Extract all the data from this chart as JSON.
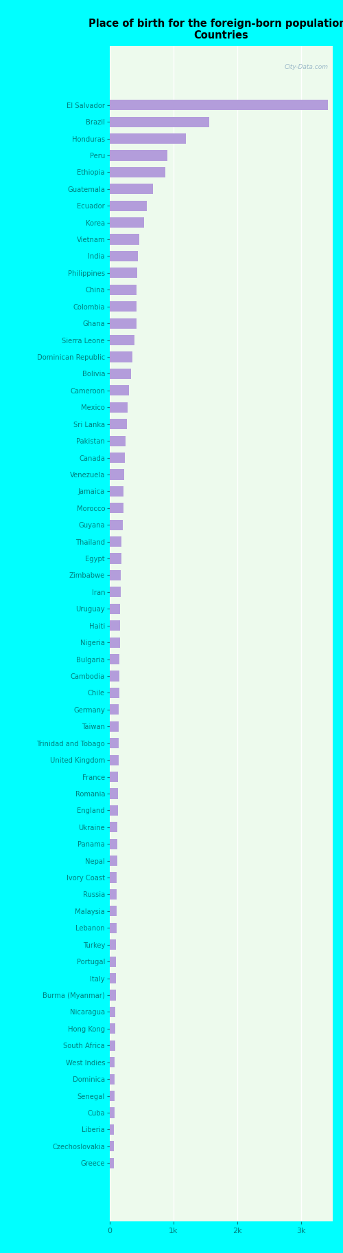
{
  "title": "Place of birth for the foreign-born population -\nCountries",
  "bar_color": "#b39ddb",
  "background_color": "#00ffff",
  "plot_bg_color": "#eef8ee",
  "label_color": "#008080",
  "tick_color": "#008080",
  "watermark": "City-Data.com",
  "categories": [
    "El Salvador",
    "Brazil",
    "Honduras",
    "Peru",
    "Ethiopia",
    "Guatemala",
    "Ecuador",
    "Korea",
    "Vietnam",
    "India",
    "Philippines",
    "China",
    "Colombia",
    "Ghana",
    "Sierra Leone",
    "Dominican Republic",
    "Bolivia",
    "Cameroon",
    "Mexico",
    "Sri Lanka",
    "Pakistan",
    "Canada",
    "Venezuela",
    "Jamaica",
    "Morocco",
    "Guyana",
    "Thailand",
    "Egypt",
    "Zimbabwe",
    "Iran",
    "Uruguay",
    "Haiti",
    "Nigeria",
    "Bulgaria",
    "Cambodia",
    "Chile",
    "Germany",
    "Taiwan",
    "Trinidad and Tobago",
    "United Kingdom",
    "France",
    "Romania",
    "England",
    "Ukraine",
    "Panama",
    "Nepal",
    "Ivory Coast",
    "Russia",
    "Malaysia",
    "Lebanon",
    "Turkey",
    "Portugal",
    "Italy",
    "Burma (Myanmar)",
    "Nicaragua",
    "Hong Kong",
    "South Africa",
    "West Indies",
    "Dominica",
    "Senegal",
    "Cuba",
    "Liberia",
    "Czechoslovakia",
    "Greece"
  ],
  "values": [
    3420,
    1560,
    1200,
    900,
    870,
    680,
    580,
    540,
    460,
    445,
    430,
    425,
    420,
    415,
    390,
    350,
    330,
    300,
    285,
    270,
    250,
    240,
    230,
    220,
    215,
    200,
    185,
    180,
    175,
    170,
    165,
    162,
    158,
    155,
    150,
    148,
    145,
    142,
    138,
    135,
    130,
    127,
    124,
    121,
    118,
    115,
    112,
    109,
    106,
    103,
    100,
    98,
    95,
    92,
    89,
    86,
    83,
    80,
    77,
    74,
    71,
    68,
    65,
    62
  ],
  "xlim": [
    0,
    3500
  ],
  "xticks": [
    0,
    1000,
    2000,
    3000
  ],
  "xticklabels": [
    "0",
    "1k",
    "2k",
    "3k"
  ]
}
